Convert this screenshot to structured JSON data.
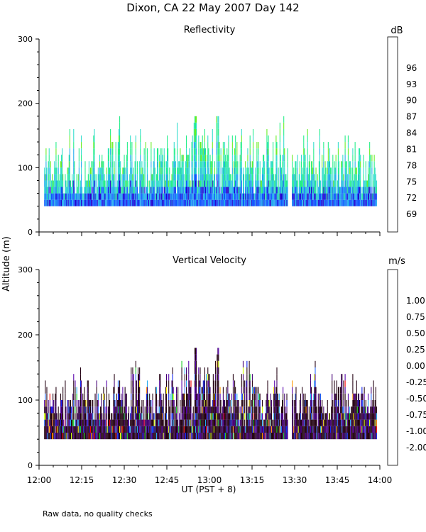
{
  "page_title": "Dixon, CA 22 May 2007  Day 142",
  "footnote": "Raw data, no quality checks",
  "shared_ylabel": "Altitude (m)",
  "chart_data": [
    {
      "type": "heatmap",
      "title": "Reflectivity",
      "ylabel": "Altitude (m)",
      "xlabel": "UT  (PST + 8)",
      "xlim_hours": [
        12.0,
        14.0
      ],
      "ylim": [
        0,
        300
      ],
      "yticks": [
        0,
        100,
        200,
        300
      ],
      "echo_base_m": 40,
      "colorbar": {
        "unit": "dB",
        "tick_labels": [
          "69",
          "72",
          "75",
          "78",
          "81",
          "84",
          "87",
          "90",
          "93",
          "96"
        ],
        "colors": [
          "#ccff33",
          "#66ee22",
          "#22ee88",
          "#33ddcc",
          "#22aaee",
          "#1155ff",
          "#2200cc",
          "#440088",
          "#1a0022",
          "#ff0000",
          "#ff8800",
          "#ffcc00"
        ]
      },
      "typical_top_m": [
        80,
        120
      ],
      "max_top_m": 180,
      "max_top_time": "12:55"
    },
    {
      "type": "heatmap",
      "title": "Vertical Velocity",
      "ylabel": "Altitude (m)",
      "xlabel": "UT  (PST + 8)",
      "xlim_hours": [
        12.0,
        14.0
      ],
      "ylim": [
        0,
        300
      ],
      "yticks": [
        0,
        100,
        200,
        300
      ],
      "echo_base_m": 40,
      "colorbar": {
        "unit": "m/s",
        "tick_labels": [
          "-2.00",
          "-1.00",
          "-0.75",
          "-0.50",
          "-0.25",
          "0.00",
          "0.25",
          "0.50",
          "0.75",
          "1.00"
        ],
        "colors": [
          "#220011",
          "#440077",
          "#5500aa",
          "#1122ee",
          "#2266ff",
          "#22aaee",
          "#11cc22",
          "#ccff00",
          "#ffee00",
          "#ff9900",
          "#ff3300",
          "#ff0000"
        ]
      },
      "typical_top_m": [
        80,
        100
      ],
      "max_top_m": 180,
      "max_top_time": "12:55"
    }
  ],
  "xticks": [
    "12:00",
    "12:15",
    "12:30",
    "12:45",
    "13:00",
    "13:15",
    "13:30",
    "13:45",
    "14:00"
  ]
}
